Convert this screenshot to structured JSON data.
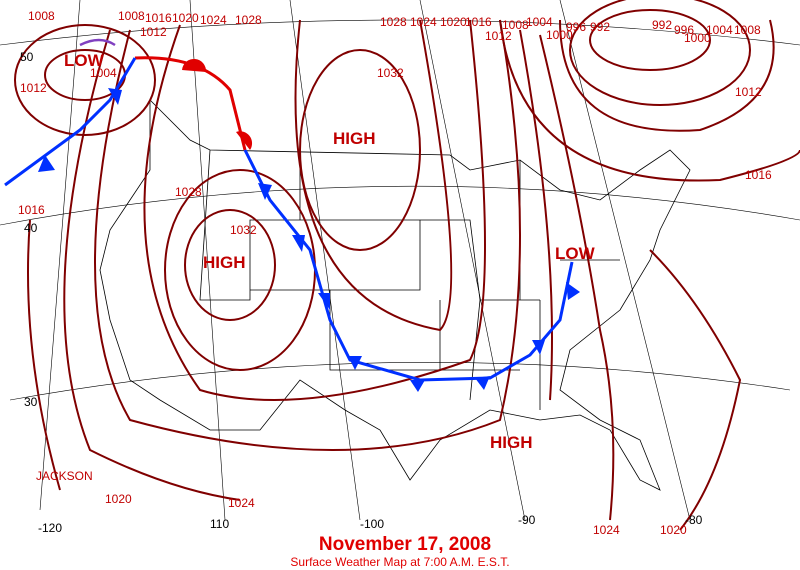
{
  "title": "November 17, 2008",
  "subtitle": "Surface Weather Map at 7:00 A.M. E.S.T.",
  "station": "JACKSON",
  "centers": [
    "LOW",
    "HIGH",
    "HIGH",
    "LOW",
    "HIGH"
  ],
  "isobar_labels": [
    1008,
    1008,
    1016,
    1020,
    1024,
    1028,
    1012,
    1004,
    1012,
    1016,
    1028,
    1032,
    1032,
    1028,
    1024,
    1020,
    1016,
    1008,
    1012,
    1004,
    1000,
    996,
    992,
    992,
    996,
    1000,
    1004,
    1008,
    1012,
    1016,
    1020,
    1024,
    1024,
    1020
  ],
  "latitude_labels": [
    50,
    40,
    30
  ],
  "longitude_labels": [
    -120,
    110,
    -100,
    -90,
    -80
  ]
}
